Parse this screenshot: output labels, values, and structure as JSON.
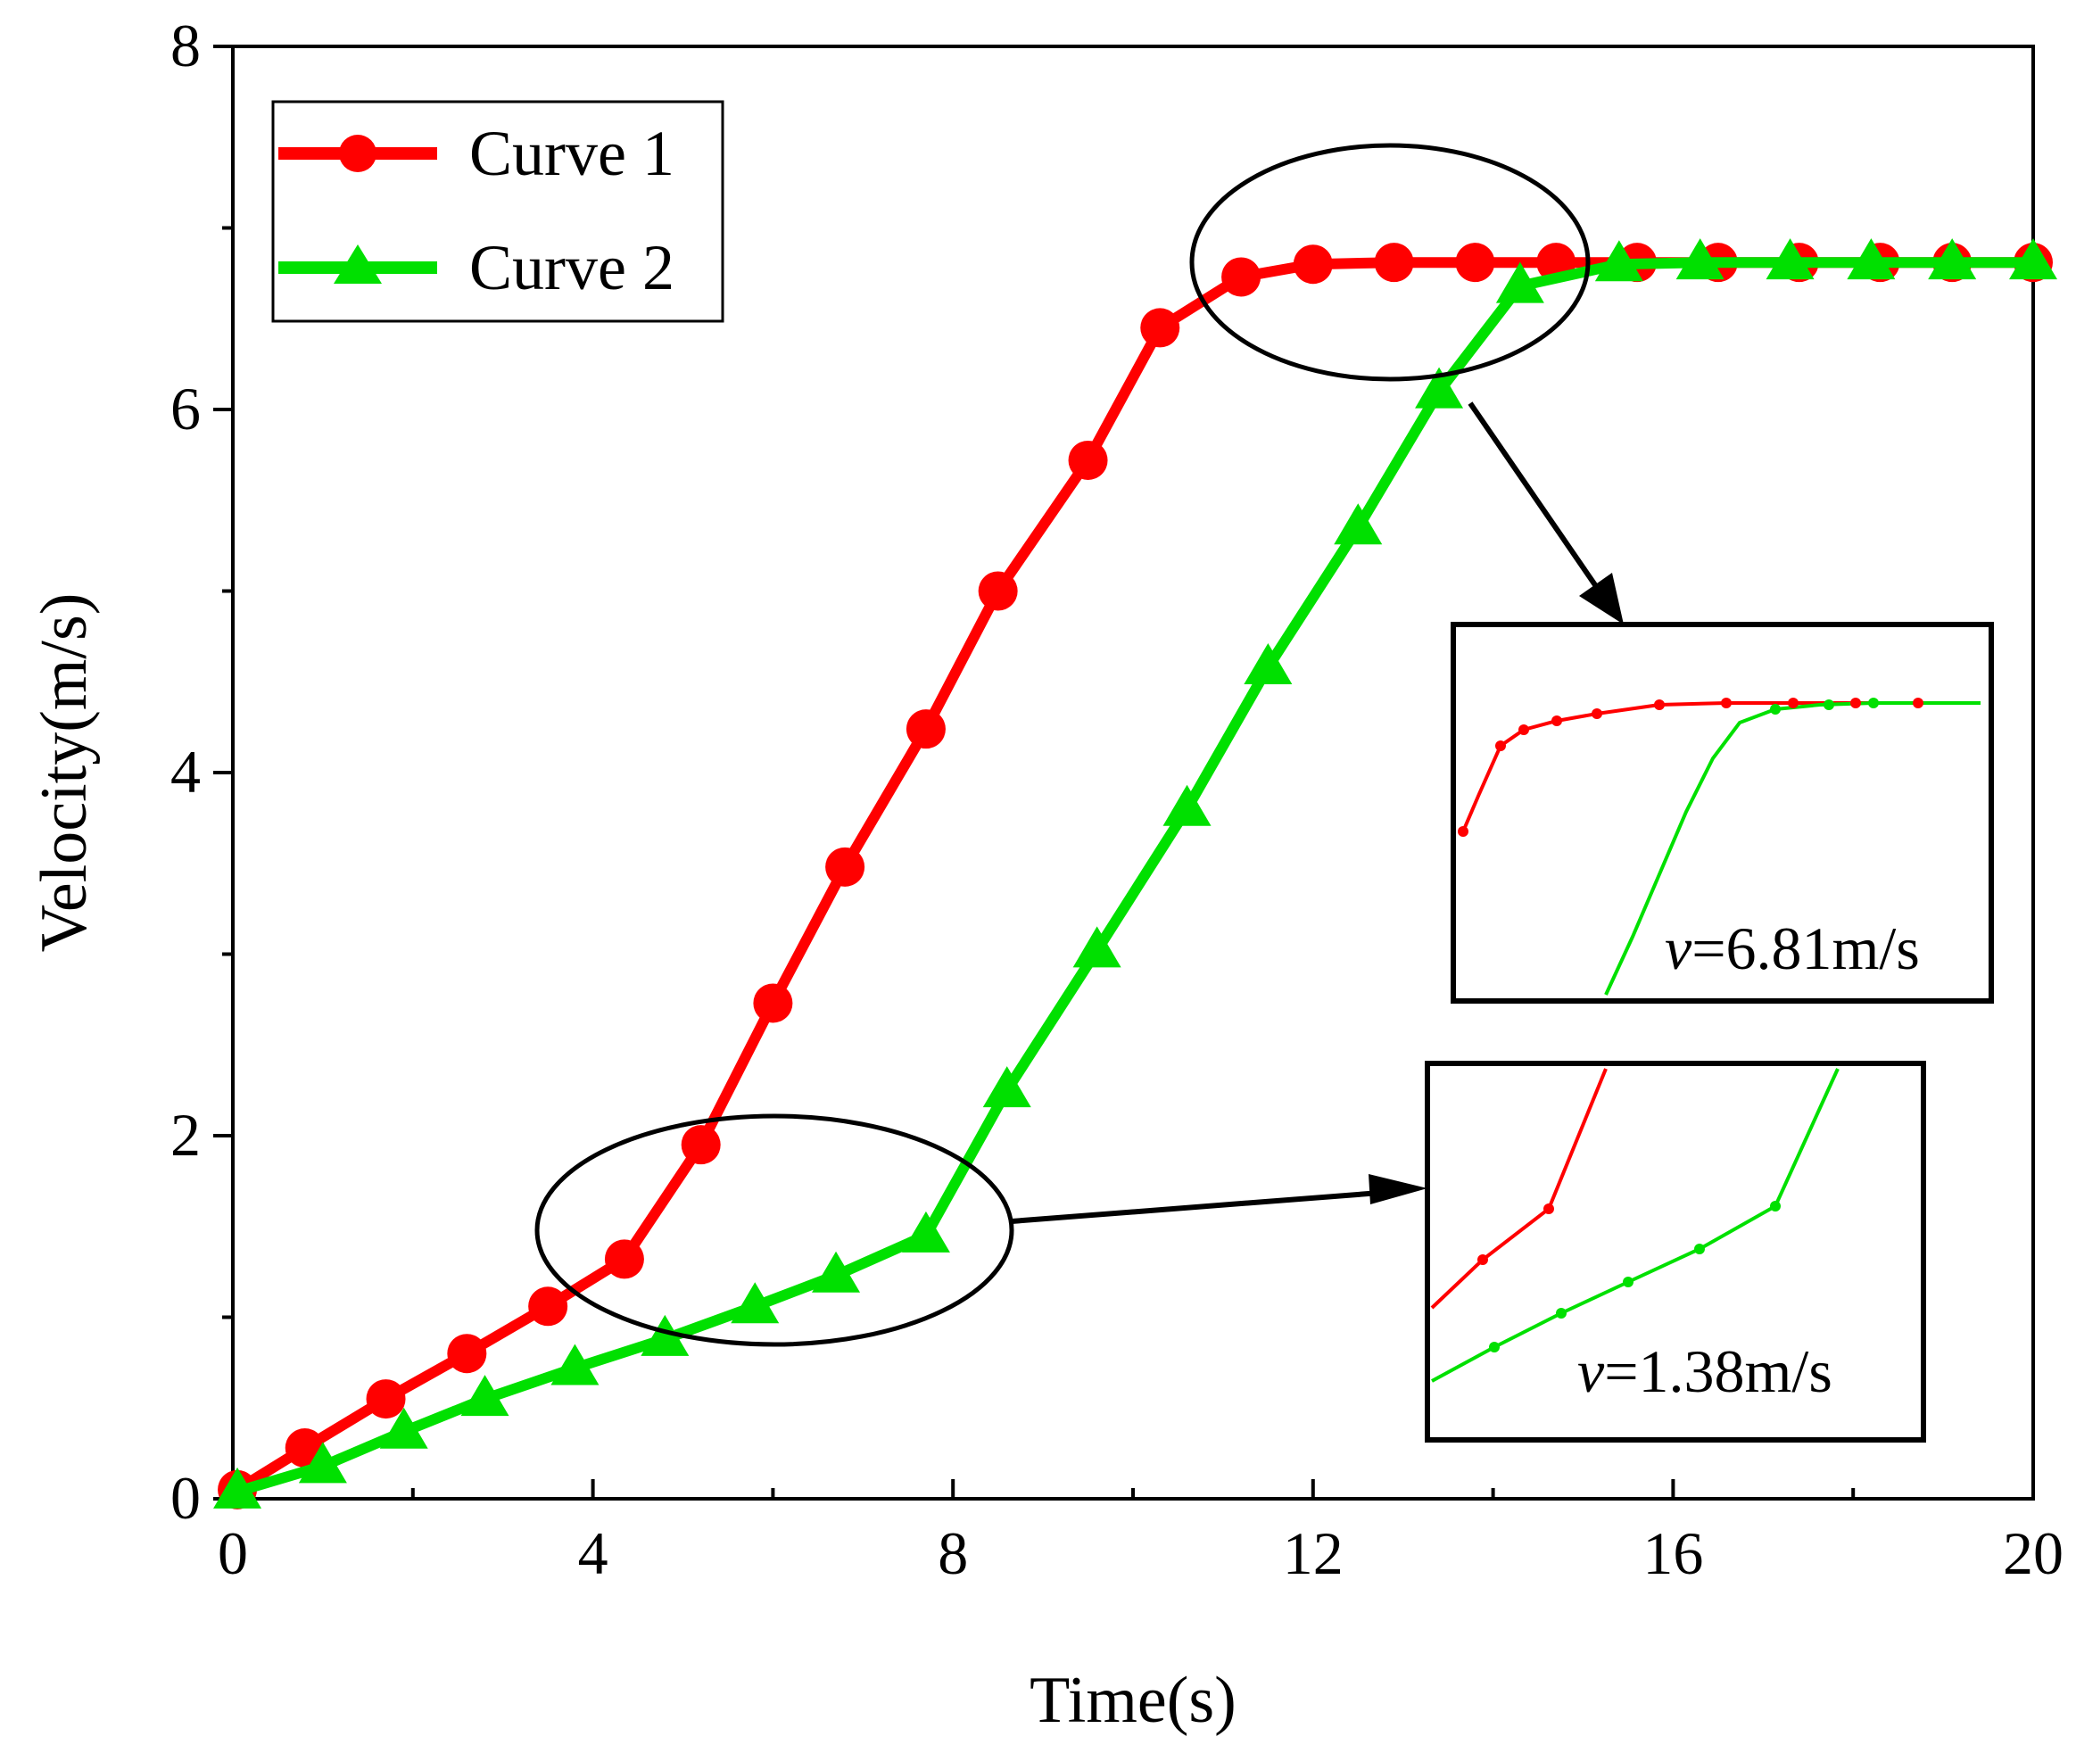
{
  "chart_data": {
    "type": "line",
    "xlabel": "Time(s)",
    "ylabel": "Velocity(m/s)",
    "xlim": [
      0,
      20
    ],
    "ylim": [
      0,
      8
    ],
    "xticks": [
      "0",
      "4",
      "8",
      "12",
      "16",
      "20"
    ],
    "yticks": [
      "0",
      "2",
      "4",
      "6",
      "8"
    ],
    "grid": false,
    "legend_position": "top-left",
    "series": [
      {
        "name": "Curve 1",
        "color": "#ff0000",
        "marker": "circle",
        "points": [
          [
            0.05,
            0.05
          ],
          [
            0.8,
            0.28
          ],
          [
            1.7,
            0.55
          ],
          [
            2.6,
            0.8
          ],
          [
            3.5,
            1.06
          ],
          [
            4.35,
            1.32
          ],
          [
            5.2,
            1.95
          ],
          [
            6.0,
            2.73
          ],
          [
            6.8,
            3.48
          ],
          [
            7.7,
            4.24
          ],
          [
            8.5,
            5.0
          ],
          [
            9.5,
            5.72
          ],
          [
            10.3,
            6.45
          ],
          [
            11.2,
            6.73
          ],
          [
            12.0,
            6.8
          ],
          [
            12.9,
            6.81
          ],
          [
            13.8,
            6.81
          ],
          [
            14.7,
            6.81
          ],
          [
            15.6,
            6.81
          ],
          [
            16.5,
            6.81
          ],
          [
            17.4,
            6.81
          ],
          [
            18.3,
            6.81
          ],
          [
            19.1,
            6.81
          ],
          [
            20.0,
            6.81
          ]
        ]
      },
      {
        "name": "Curve 2",
        "color": "#00e000",
        "marker": "triangle",
        "points": [
          [
            0.05,
            0.04
          ],
          [
            1.0,
            0.18
          ],
          [
            1.9,
            0.37
          ],
          [
            2.8,
            0.55
          ],
          [
            3.8,
            0.72
          ],
          [
            4.8,
            0.88
          ],
          [
            5.8,
            1.06
          ],
          [
            6.7,
            1.23
          ],
          [
            7.7,
            1.45
          ],
          [
            8.6,
            2.25
          ],
          [
            9.6,
            3.02
          ],
          [
            10.6,
            3.8
          ],
          [
            11.5,
            4.58
          ],
          [
            12.5,
            5.35
          ],
          [
            13.4,
            6.1
          ],
          [
            14.3,
            6.68
          ],
          [
            15.4,
            6.8
          ],
          [
            16.3,
            6.81
          ],
          [
            17.3,
            6.81
          ],
          [
            18.2,
            6.81
          ],
          [
            19.1,
            6.81
          ],
          [
            20.0,
            6.81
          ]
        ]
      }
    ],
    "annotations": [
      {
        "text": "v=6.81m/s",
        "symbol": "v",
        "value_text": "=6.81m/s"
      },
      {
        "text": "v=1.38m/s",
        "symbol": "v",
        "value_text": "=1.38m/s"
      }
    ]
  }
}
